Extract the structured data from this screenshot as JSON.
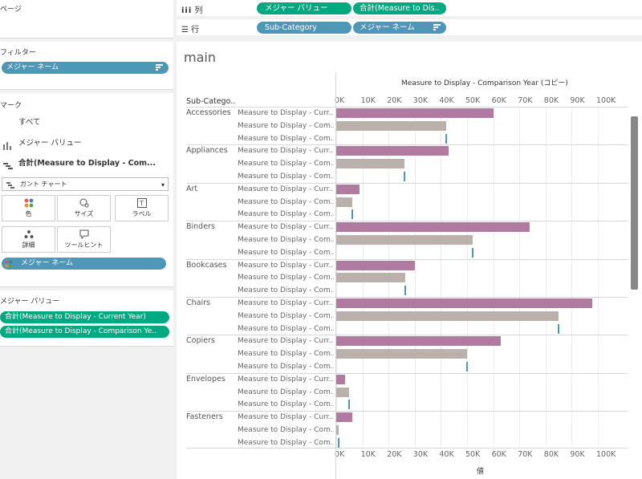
{
  "left": {
    "pages_title": "ページ",
    "filters_title": "フィルター",
    "filter_pill": "メジャー ネーム",
    "marks_title": "マーク",
    "marks_rows": [
      "すべて",
      "メジャー バリュー",
      "合計(Measure to Display - Com..."
    ],
    "marks_type": "ガント チャート",
    "mark_buttons": [
      "色",
      "サイズ",
      "ラベル",
      "詳細",
      "ツールヒント"
    ],
    "color_pill": "メジャー ネーム",
    "measure_values_title": "メジャー バリュー",
    "measure_values_pills": [
      "合計(Measure to Display - Current Year)",
      "合計(Measure to Display - Comparison Ye.."
    ]
  },
  "shelves": {
    "columns_label": "列",
    "columns_pills": [
      "メジャー バリュー",
      "合計(Measure to Dis.."
    ],
    "rows_label": "行",
    "rows_pills": [
      "Sub-Category",
      "メジャー ネーム"
    ]
  },
  "viz": {
    "title": "main",
    "top_axis_title": "Measure to Display - Comparison Year (コピー)",
    "bottom_axis_title": "値",
    "row_header": "Sub-Catego..",
    "ticks": [
      "0K",
      "10K",
      "20K",
      "30K",
      "40K",
      "50K",
      "60K",
      "70K",
      "80K",
      "90K",
      "100K"
    ],
    "measure_labels": [
      "Measure to Display - Curr..",
      "Measure to Display - Com..",
      "Measure to Display - Com.."
    ]
  },
  "colors": {
    "current": "#b07aa1",
    "comparison": "#bab0ac",
    "marker": "#4f97b6"
  },
  "chart_data": {
    "type": "bar",
    "xlim": [
      0,
      110000
    ],
    "categories": [
      "Accessories",
      "Appliances",
      "Art",
      "Binders",
      "Bookcases",
      "Chairs",
      "Copiers",
      "Envelopes",
      "Fasteners"
    ],
    "series": [
      {
        "values": [
          60000,
          43000,
          9000,
          74000,
          30000,
          98000,
          63000,
          3500,
          6000
        ]
      },
      {
        "values": [
          42000,
          26000,
          6000,
          52000,
          26500,
          85000,
          50000,
          5000,
          1000
        ]
      },
      {
        "values": [
          42000,
          26000,
          6000,
          52000,
          26500,
          85000,
          50000,
          5000,
          1000
        ]
      }
    ]
  }
}
